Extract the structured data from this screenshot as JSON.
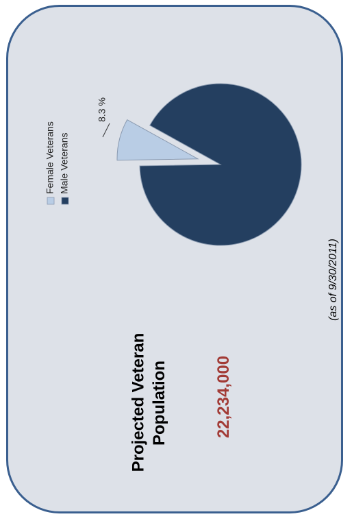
{
  "title": {
    "line1": "Projected Veteran",
    "line2": "Population"
  },
  "population": "22,234,000",
  "as_of": "(as of 9/30/2011)",
  "colors": {
    "border": "#3a5f8f",
    "background": "#dde1e8",
    "population": "#a23b36",
    "female": "#b9cde5",
    "male": "#243f60"
  },
  "chart_data": {
    "type": "pie",
    "categories": [
      "Female Veterans",
      "Male Veterans"
    ],
    "values": [
      8.3,
      91.7
    ],
    "units": "%",
    "data_labels": [
      "8.3 %",
      ""
    ],
    "exploded": [
      "Female Veterans"
    ],
    "legend": {
      "entries": [
        "Female Veterans",
        "Male Veterans"
      ],
      "placement": "top"
    }
  }
}
